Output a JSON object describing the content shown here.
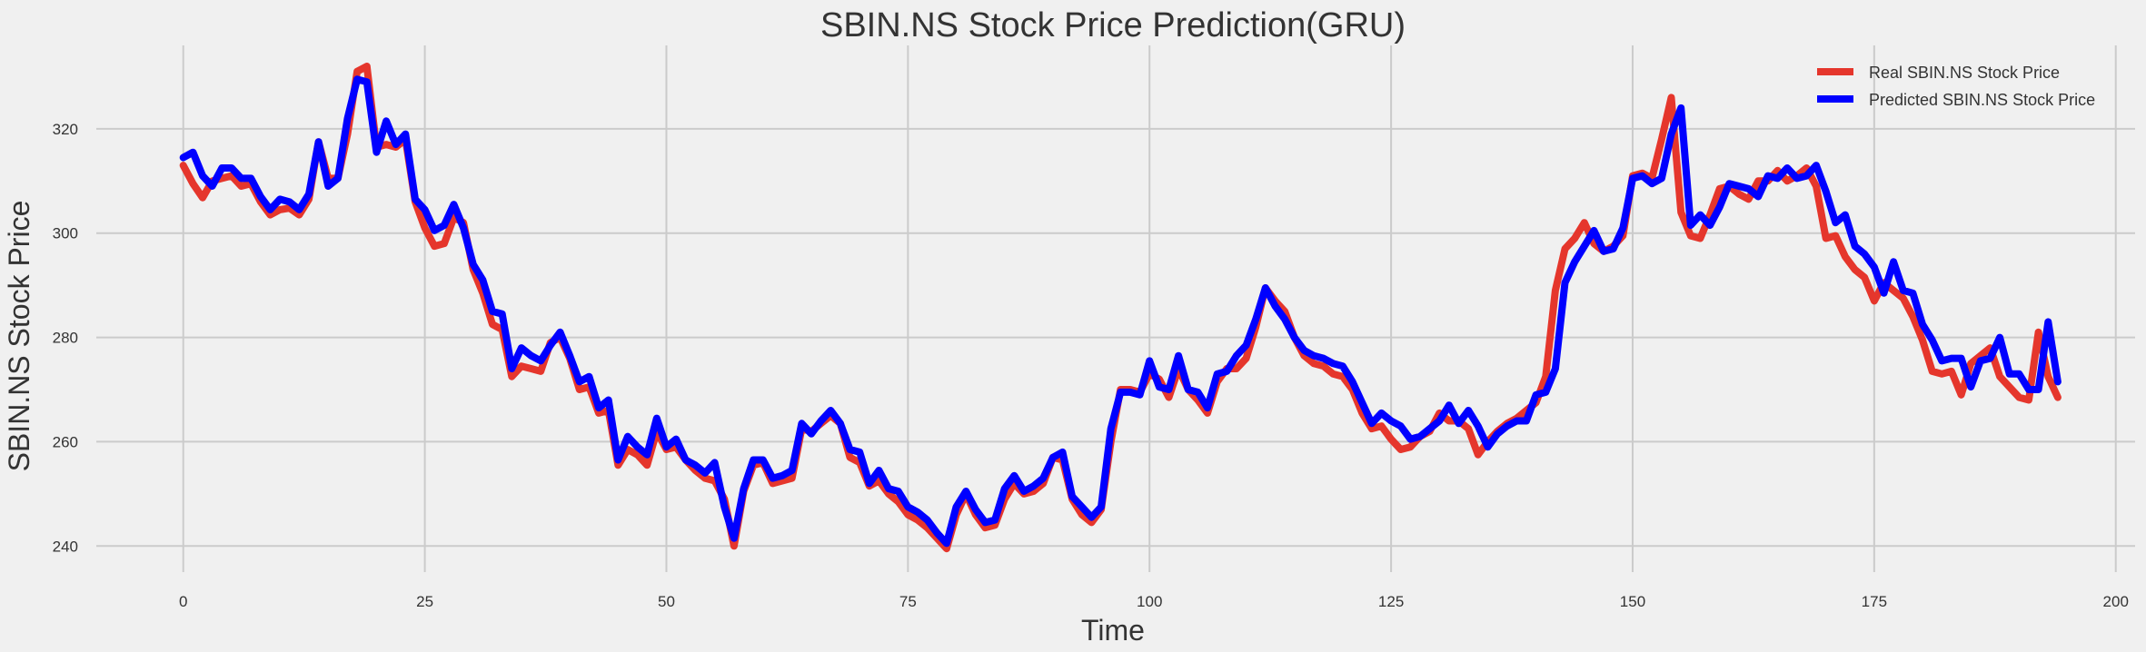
{
  "chart_data": {
    "type": "line",
    "title": "SBIN.NS Stock Price Prediction(GRU)",
    "xlabel": "Time",
    "ylabel": "SBIN.NS Stock Price",
    "xlim": [
      -9,
      202
    ],
    "ylim": [
      235,
      336
    ],
    "xticks": [
      0,
      25,
      50,
      75,
      100,
      125,
      150,
      175,
      200
    ],
    "yticks": [
      240,
      260,
      280,
      300,
      320
    ],
    "grid": true,
    "legend_position": "top-right",
    "series": [
      {
        "name": "Real SBIN.NS Stock Price",
        "color": "#e5362c",
        "values": [
          313,
          309.5,
          306.8,
          310,
          310.5,
          311,
          309,
          309.5,
          306,
          303.5,
          304.5,
          304.8,
          303.5,
          306.5,
          317.5,
          310.5,
          310.5,
          319,
          331,
          332,
          316.5,
          317,
          316.5,
          318,
          306,
          301,
          297.5,
          298,
          303,
          302,
          293,
          288.5,
          282.5,
          281.5,
          272.5,
          274.5,
          274,
          273.5,
          279,
          280,
          276,
          270,
          270.5,
          265.5,
          266,
          255.5,
          258.5,
          257.5,
          255.5,
          262,
          258.5,
          259,
          256.5,
          254.5,
          253,
          252.5,
          249,
          240,
          250.5,
          255.5,
          256,
          252,
          252.5,
          253,
          262.5,
          262,
          263.5,
          265,
          263.5,
          257,
          256,
          251.5,
          252.5,
          250,
          248.5,
          246,
          245,
          243.5,
          241.5,
          239.5,
          246,
          250,
          246,
          243.5,
          244,
          249,
          252,
          250,
          250.5,
          252,
          257,
          256.5,
          249,
          246,
          244.5,
          247,
          260,
          270,
          270,
          269.5,
          273,
          272,
          268.5,
          274,
          270,
          268,
          265.5,
          271.5,
          274,
          274,
          276,
          282,
          289.5,
          287,
          285,
          280,
          276.5,
          275,
          274.5,
          273,
          272.5,
          270,
          265.5,
          262.5,
          263,
          260.5,
          258.5,
          259,
          261,
          262,
          265.5,
          264,
          264,
          262.5,
          257.5,
          260,
          262,
          263.5,
          264.5,
          266,
          267.5,
          272.5,
          289,
          297,
          299,
          302,
          298,
          296.5,
          297.5,
          299.5,
          311,
          311.5,
          310.5,
          318,
          326,
          304,
          299.5,
          299,
          303.5,
          308.5,
          309,
          307.5,
          306.5,
          310,
          310,
          312,
          310,
          311,
          312.5,
          309,
          299,
          299.5,
          295.5,
          293,
          291.5,
          287,
          290.5,
          289,
          287.5,
          284,
          279.5,
          273.5,
          273,
          273.5,
          269,
          275,
          276.5,
          278,
          272.5,
          270.5,
          268.5,
          268,
          281,
          272.5,
          268.5
        ]
      },
      {
        "name": "Predicted SBIN.NS Stock Price",
        "color": "#0000ff",
        "values": [
          314.5,
          315.5,
          311,
          309,
          312.5,
          312.5,
          310.5,
          310.5,
          307,
          304.5,
          306.5,
          306,
          304.5,
          307.5,
          317.5,
          309,
          310.5,
          322,
          329.5,
          329,
          315.5,
          321.5,
          317,
          319,
          306.5,
          304.5,
          300.5,
          301.5,
          305.5,
          301,
          294,
          291,
          285,
          284.5,
          274,
          278,
          276.5,
          275.5,
          278.5,
          281,
          276.5,
          271.5,
          272.5,
          266.5,
          268,
          256.5,
          261,
          259,
          257.5,
          264.5,
          259,
          260.5,
          256.5,
          255.5,
          254,
          256,
          247.5,
          241.5,
          251,
          256.5,
          256.5,
          253,
          253.5,
          254.5,
          263.5,
          261.5,
          264,
          266,
          263.5,
          258.5,
          258,
          252,
          254.5,
          251,
          250.5,
          247.5,
          246.5,
          245,
          242.5,
          240.5,
          247.5,
          250.5,
          247,
          244.5,
          245,
          251,
          253.5,
          250.5,
          251.5,
          253,
          257,
          258,
          249.5,
          247.5,
          245.5,
          247.5,
          262.5,
          269.5,
          269.5,
          269,
          275.5,
          270.5,
          270,
          276.5,
          270,
          269.5,
          266.5,
          273,
          273.5,
          276.5,
          278.5,
          283.5,
          289.5,
          286,
          283.5,
          280,
          277.5,
          276.5,
          276,
          275,
          274.5,
          271.5,
          267.5,
          263.5,
          265.5,
          264,
          263,
          260.5,
          261,
          262.5,
          264,
          267,
          263.5,
          266,
          263,
          259,
          261.5,
          263,
          264,
          264,
          269,
          269.5,
          274,
          290.5,
          294.5,
          297.5,
          300.5,
          296.5,
          297,
          301,
          310.5,
          311,
          309.5,
          310.5,
          319,
          324,
          301.5,
          303.5,
          301.5,
          305,
          309.5,
          309,
          308.5,
          307,
          311,
          310.5,
          312.5,
          310.5,
          311,
          313,
          308,
          302,
          303.5,
          297.5,
          296,
          293.5,
          288.5,
          294.5,
          289,
          288.5,
          282.5,
          279.5,
          275.5,
          276,
          276,
          270.5,
          275.5,
          276,
          280,
          273,
          273,
          270,
          270,
          283,
          271.5
        ]
      }
    ]
  }
}
